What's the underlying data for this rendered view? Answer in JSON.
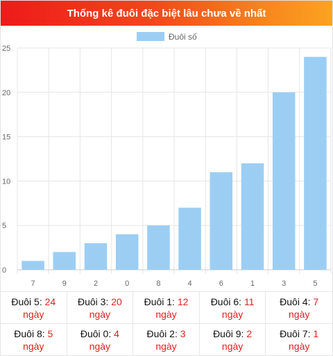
{
  "header": {
    "title": "Thống kê đuôi đặc biệt lâu chưa về nhất"
  },
  "chart_data": {
    "type": "bar",
    "title": "Thống kê đuôi đặc biệt lâu chưa về nhất",
    "categories": [
      "7",
      "9",
      "2",
      "0",
      "8",
      "4",
      "6",
      "1",
      "3",
      "5"
    ],
    "series": [
      {
        "name": "Đuôi số",
        "values": [
          1,
          2,
          3,
          4,
          5,
          7,
          11,
          12,
          20,
          24
        ]
      }
    ],
    "ylim": [
      0,
      25
    ],
    "yticks": [
      "0",
      "5",
      "10",
      "15",
      "20",
      "25"
    ],
    "grid": true,
    "legend": "top-center",
    "colors": {
      "bar": "#9ccef4",
      "grid": "#e5e5e5",
      "axis": "#cccccc"
    }
  },
  "summary": [
    {
      "label": "Đuôi 5:",
      "value": "24",
      "unit": "ngày"
    },
    {
      "label": "Đuôi 3:",
      "value": "20",
      "unit": "ngày"
    },
    {
      "label": "Đuôi 1:",
      "value": "12",
      "unit": "ngày"
    },
    {
      "label": "Đuôi 6:",
      "value": "11",
      "unit": "ngày"
    },
    {
      "label": "Đuôi 4:",
      "value": "7",
      "unit": "ngày"
    },
    {
      "label": "Đuôi 8:",
      "value": "5",
      "unit": "ngày"
    },
    {
      "label": "Đuôi 0:",
      "value": "4",
      "unit": "ngày"
    },
    {
      "label": "Đuôi 2:",
      "value": "3",
      "unit": "ngày"
    },
    {
      "label": "Đuôi 9:",
      "value": "2",
      "unit": "ngày"
    },
    {
      "label": "Đuôi 7:",
      "value": "1",
      "unit": "ngày"
    }
  ]
}
